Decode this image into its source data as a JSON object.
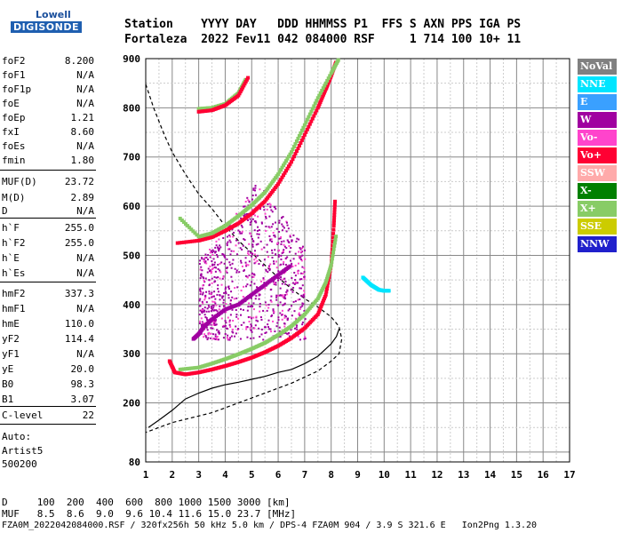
{
  "logo": {
    "lowell": "Lowell",
    "digisonde": "DIGISONDE"
  },
  "header": {
    "line1": "Station    YYYY DAY   DDD HHMMSS P1  FFS S AXN PPS IGA PS",
    "line2": "Fortaleza  2022 Fev11 042 084000 RSF     1 714 100 10+ 11"
  },
  "params": [
    {
      "label": "foF2",
      "value": "8.200"
    },
    {
      "label": "foF1",
      "value": "N/A"
    },
    {
      "label": "foF1p",
      "value": "N/A"
    },
    {
      "label": "foE",
      "value": "N/A"
    },
    {
      "label": "foEp",
      "value": "1.21"
    },
    {
      "label": "fxI",
      "value": "8.60"
    },
    {
      "label": "foEs",
      "value": "N/A"
    },
    {
      "label": "fmin",
      "value": "1.80"
    },
    {
      "label": "MUF(D)",
      "value": "23.72"
    },
    {
      "label": "M(D)",
      "value": "2.89"
    },
    {
      "label": "D",
      "value": "N/A"
    },
    {
      "label": "h`F",
      "value": "255.0"
    },
    {
      "label": "h`F2",
      "value": "255.0"
    },
    {
      "label": "h`E",
      "value": "N/A"
    },
    {
      "label": "h`Es",
      "value": "N/A"
    },
    {
      "label": "hmF2",
      "value": "337.3"
    },
    {
      "label": "hmF1",
      "value": "N/A"
    },
    {
      "label": "hmE",
      "value": "110.0"
    },
    {
      "label": "yF2",
      "value": "114.4"
    },
    {
      "label": "yF1",
      "value": "N/A"
    },
    {
      "label": "yE",
      "value": "20.0"
    },
    {
      "label": "B0",
      "value": "98.3"
    },
    {
      "label": "B1",
      "value": "3.07"
    },
    {
      "label": "C-level",
      "value": "22"
    }
  ],
  "misc": {
    "auto": "Auto:",
    "artist": "Artist5",
    "version": "500200"
  },
  "legend": [
    {
      "label": "NoVal",
      "color": "#808080"
    },
    {
      "label": "NNE",
      "color": "#00e5ff"
    },
    {
      "label": "E",
      "color": "#3aa0ff"
    },
    {
      "label": "W",
      "color": "#a000a0"
    },
    {
      "label": "Vo-",
      "color": "#ff44cc"
    },
    {
      "label": "Vo+",
      "color": "#ff0033"
    },
    {
      "label": "SSW",
      "color": "#ffaaaa"
    },
    {
      "label": "X-",
      "color": "#008000"
    },
    {
      "label": "X+",
      "color": "#88cc66"
    },
    {
      "label": "SSE",
      "color": "#cccc00"
    },
    {
      "label": "NNW",
      "color": "#2020cc"
    }
  ],
  "bottom": {
    "d_row": "D     100  200  400  600  800 1000 1500 3000 [km]",
    "muf_row": "MUF   8.5  8.6  9.0  9.6 10.4 11.6 15.0 23.7 [MHz]",
    "footer": "FZA0M_2022042084000.RSF / 320fx256h 50 kHz 5.0 km / DPS-4 FZA0M 904 / 3.9 S 321.6 E   Ion2Png 1.3.20"
  },
  "chart_data": {
    "type": "scatter",
    "xlim": [
      1,
      17
    ],
    "ylim": [
      80,
      900
    ],
    "xticks": [
      "1",
      "2",
      "3",
      "4",
      "5",
      "6",
      "7",
      "8",
      "9",
      "10",
      "11",
      "12",
      "13",
      "14",
      "15",
      "16",
      "17"
    ],
    "yticks": [
      {
        "value": 80,
        "label": "80"
      },
      {
        "value": 200,
        "label": "200"
      },
      {
        "value": 300,
        "label": "300"
      },
      {
        "value": 400,
        "label": "400"
      },
      {
        "value": 500,
        "label": "500"
      },
      {
        "value": 600,
        "label": "600"
      },
      {
        "value": 700,
        "label": "700"
      },
      {
        "value": 800,
        "label": "800"
      },
      {
        "value": 900,
        "label": "900"
      }
    ],
    "grid": true,
    "series": [
      {
        "type": "trace",
        "color": "#ff0033",
        "x": [
          1.9,
          2.1,
          2.5,
          3.0,
          3.5,
          4.0,
          4.5,
          5.0,
          5.5,
          6.0,
          6.5,
          7.0,
          7.5,
          7.8,
          8.0,
          8.1,
          8.15
        ],
        "y": [
          285,
          262,
          258,
          262,
          268,
          275,
          283,
          292,
          303,
          316,
          332,
          352,
          380,
          420,
          480,
          560,
          615
        ]
      },
      {
        "type": "trace",
        "color": "#88cc66",
        "x": [
          2.3,
          3.0,
          3.5,
          4.0,
          4.5,
          5.0,
          5.5,
          6.0,
          6.5,
          7.0,
          7.5,
          7.8,
          8.0,
          8.2
        ],
        "y": [
          268,
          272,
          280,
          289,
          299,
          310,
          322,
          338,
          356,
          380,
          412,
          445,
          480,
          545
        ]
      },
      {
        "type": "trace",
        "color": "#ff0033",
        "x": [
          2.2,
          3.0,
          3.5,
          4.0,
          4.5,
          5.0,
          5.5,
          6.0,
          6.5,
          7.0,
          7.5,
          7.8,
          8.0,
          8.2
        ],
        "y": [
          525,
          530,
          537,
          550,
          565,
          585,
          610,
          645,
          690,
          745,
          800,
          838,
          865,
          895
        ]
      },
      {
        "type": "trace",
        "color": "#88cc66",
        "x": [
          2.3,
          3.0,
          3.5,
          4.0,
          4.5,
          5.0,
          5.5,
          6.0,
          6.5,
          7.0,
          7.5,
          8.0,
          8.3
        ],
        "y": [
          575,
          538,
          545,
          560,
          580,
          602,
          628,
          665,
          710,
          765,
          820,
          870,
          900
        ]
      },
      {
        "type": "trace",
        "color": "#88cc66",
        "x": [
          3.0,
          3.5,
          4.0,
          4.5,
          4.8
        ],
        "y": [
          798,
          800,
          808,
          830,
          860
        ]
      },
      {
        "type": "trace",
        "color": "#ff0033",
        "x": [
          3.0,
          3.5,
          4.0,
          4.5,
          4.9
        ],
        "y": [
          792,
          795,
          805,
          825,
          865
        ]
      },
      {
        "type": "trace",
        "color": "#00e5ff",
        "x": [
          9.2,
          9.5,
          9.8,
          10.0,
          10.2
        ],
        "y": [
          455,
          440,
          430,
          428,
          428
        ]
      },
      {
        "type": "trace",
        "color": "#a000a0",
        "x": [
          2.8,
          3.0,
          3.2,
          3.5,
          4.0,
          4.5,
          5.0,
          5.5,
          6.0,
          6.5
        ],
        "y": [
          330,
          340,
          355,
          370,
          390,
          400,
          420,
          440,
          460,
          480
        ]
      }
    ],
    "profile_solid": {
      "x": [
        1.1,
        1.5,
        2.0,
        2.5,
        3.0,
        3.5,
        4.0,
        4.5,
        5.0,
        5.5,
        6.0,
        6.5,
        7.0,
        7.5,
        7.8,
        8.0,
        8.2,
        8.3
      ],
      "y": [
        150,
        165,
        185,
        208,
        220,
        230,
        237,
        242,
        248,
        254,
        262,
        268,
        280,
        295,
        310,
        320,
        335,
        350
      ]
    },
    "profile_dashed": {
      "x": [
        1.0,
        1.3,
        1.7,
        2.0,
        2.5,
        3.0,
        3.5,
        4.0,
        4.5,
        5.0,
        5.5,
        6.0,
        6.5,
        7.0,
        7.5,
        8.0,
        8.3,
        8.4,
        8.3,
        8.0,
        7.5,
        6.5,
        5.0,
        3.5,
        2.0,
        1.5,
        1.0
      ],
      "y": [
        848,
        800,
        745,
        710,
        665,
        625,
        595,
        560,
        530,
        505,
        480,
        455,
        432,
        412,
        395,
        375,
        355,
        330,
        300,
        285,
        265,
        240,
        210,
        180,
        160,
        150,
        140
      ]
    }
  }
}
